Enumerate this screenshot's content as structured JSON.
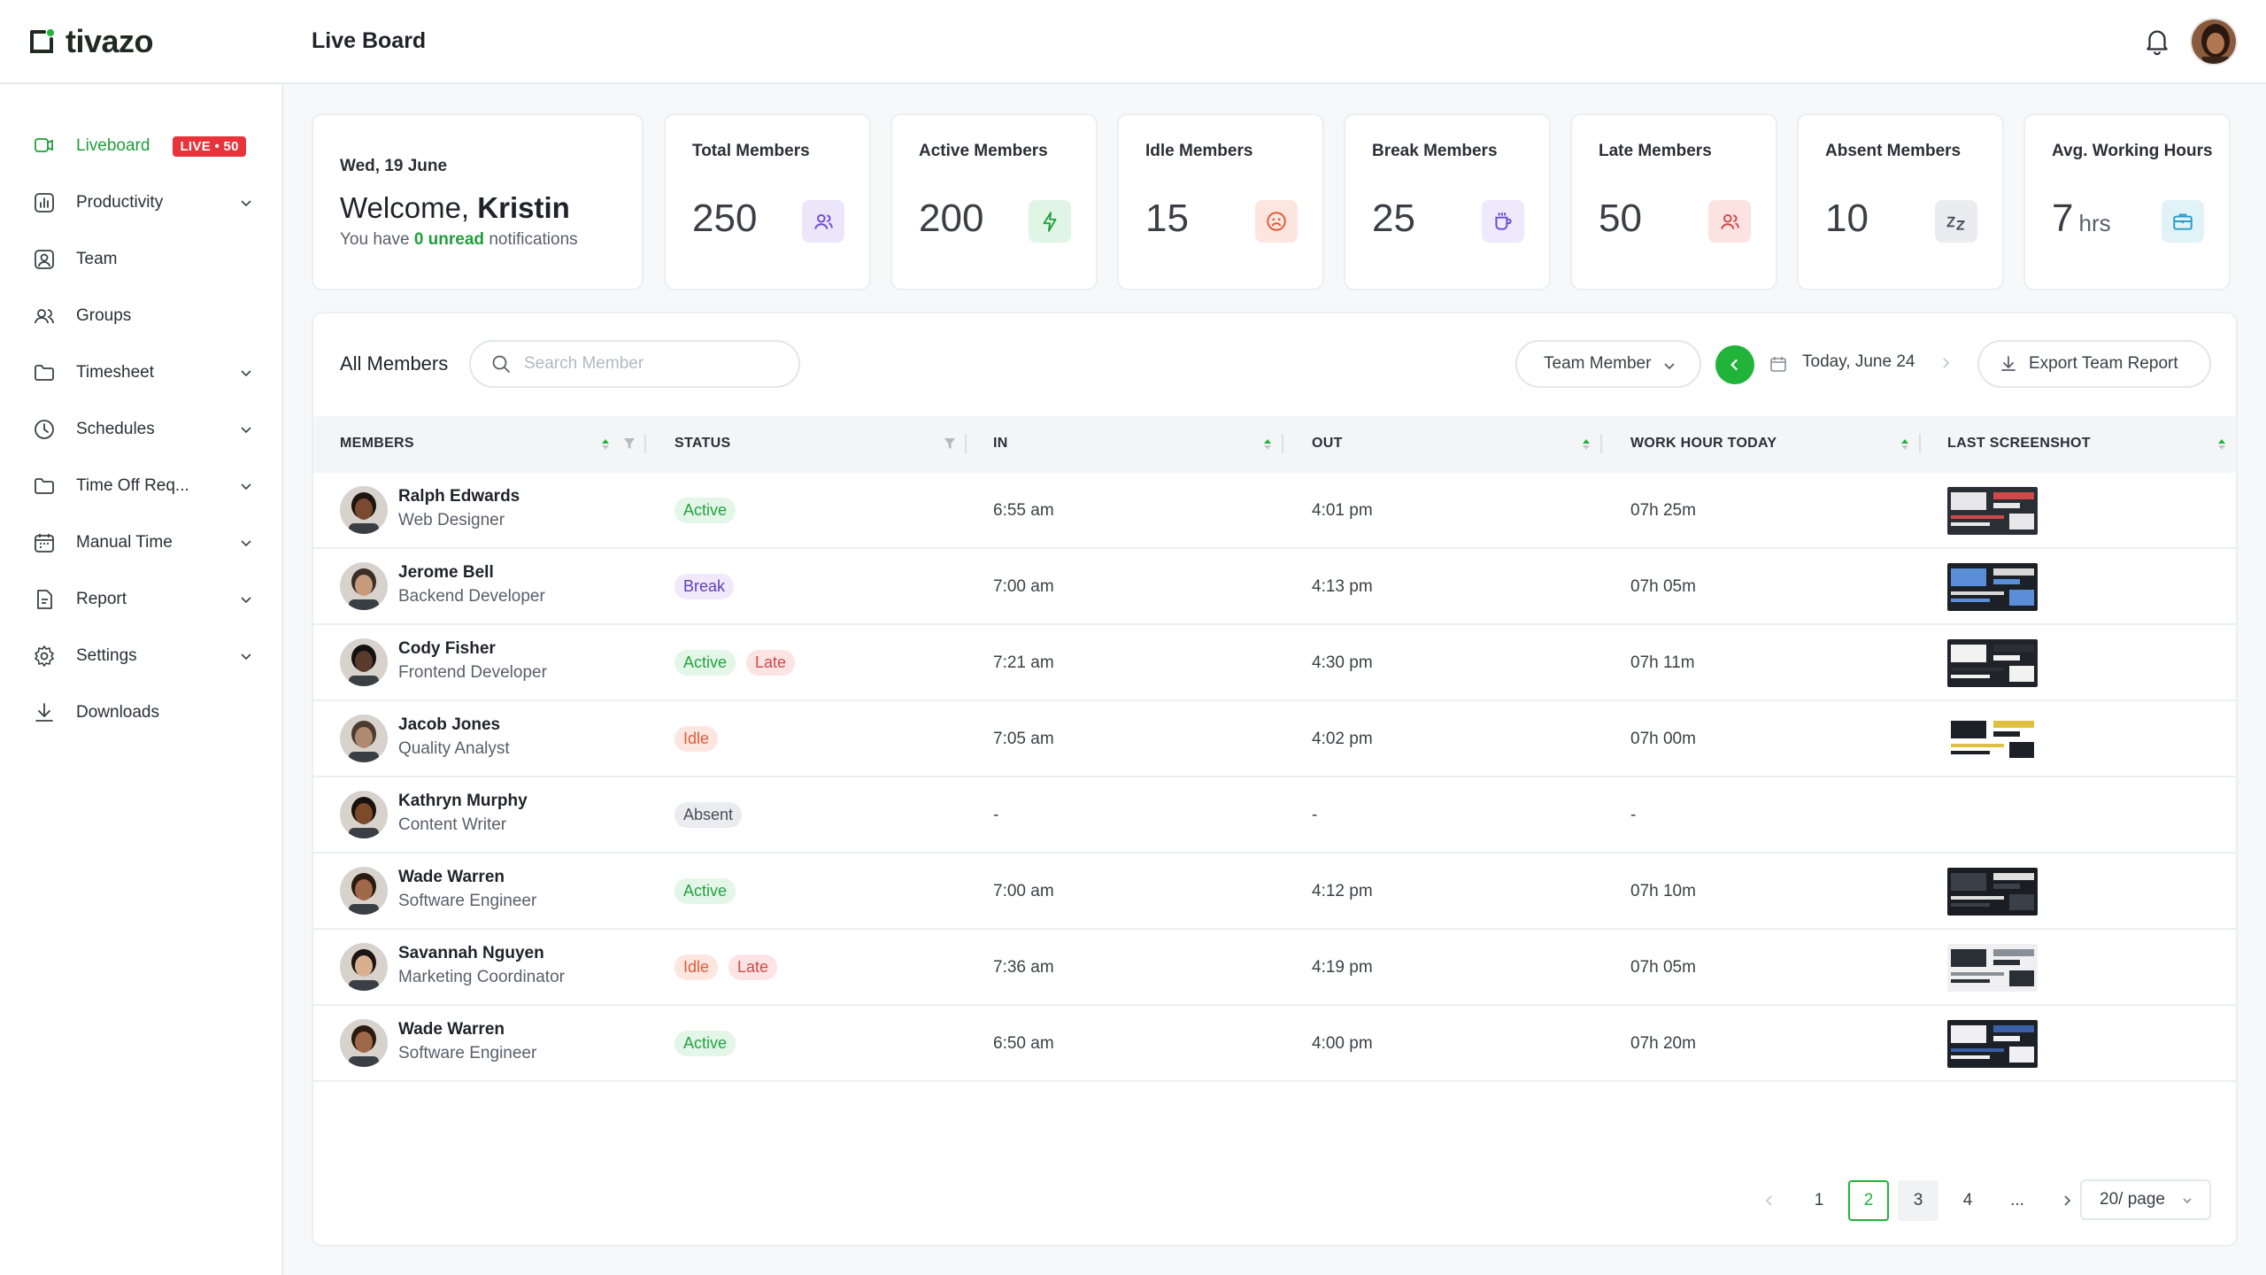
{
  "app": {
    "name": "tivazo",
    "page_title": "Live Board"
  },
  "sidebar": {
    "items": [
      {
        "label": "Liveboard",
        "icon": "liveboard-icon",
        "active": true,
        "badge": "LIVE • 50"
      },
      {
        "label": "Productivity",
        "icon": "chart-icon",
        "expandable": true
      },
      {
        "label": "Team",
        "icon": "user-icon"
      },
      {
        "label": "Groups",
        "icon": "users-icon"
      },
      {
        "label": "Timesheet",
        "icon": "folder-icon",
        "expandable": true
      },
      {
        "label": "Schedules",
        "icon": "clock-icon",
        "expandable": true
      },
      {
        "label": "Time Off Req...",
        "icon": "folder-icon",
        "expandable": true
      },
      {
        "label": "Manual Time",
        "icon": "calendar-icon",
        "expandable": true
      },
      {
        "label": "Report",
        "icon": "report-icon",
        "expandable": true
      },
      {
        "label": "Settings",
        "icon": "gear-icon",
        "expandable": true
      },
      {
        "label": "Downloads",
        "icon": "download-icon"
      }
    ]
  },
  "welcome": {
    "date": "Wed, 19 June",
    "greeting": "Welcome,",
    "name": "Kristin",
    "notif_prefix": "You have",
    "notif_count": "0 unread",
    "notif_suffix": "notifications"
  },
  "stats": [
    {
      "label": "Total Members",
      "value": "250",
      "icon": "users-icon",
      "color": "#ece6fb",
      "fg": "#6b4bd1"
    },
    {
      "label": "Active Members",
      "value": "200",
      "icon": "bolt-icon",
      "color": "#e1f5e6",
      "fg": "#23a33f"
    },
    {
      "label": "Idle Members",
      "value": "15",
      "icon": "sad-face-icon",
      "color": "#fde6df",
      "fg": "#e05a3a"
    },
    {
      "label": "Break Members",
      "value": "25",
      "icon": "coffee-icon",
      "color": "#eee9fb",
      "fg": "#6b4bd1"
    },
    {
      "label": "Late Members",
      "value": "50",
      "icon": "user-late-icon",
      "color": "#fde2e2",
      "fg": "#d04848"
    },
    {
      "label": "Absent Members",
      "value": "10",
      "icon": "sleep-icon",
      "color": "#ebecef",
      "fg": "#4a4f57"
    },
    {
      "label": "Avg. Working Hours",
      "value": "7",
      "unit": "hrs",
      "icon": "briefcase-icon",
      "color": "#e1f3f9",
      "fg": "#2b9bc2"
    }
  ],
  "toolbar": {
    "title": "All Members",
    "search_placeholder": "Search Member",
    "filter_label": "Team Member",
    "date_label": "Today, June 24",
    "export_label": "Export Team Report"
  },
  "columns": [
    "MEMBERS",
    "STATUS",
    "IN",
    "OUT",
    "WORK HOUR TODAY",
    "LAST SCREENSHOT"
  ],
  "rows": [
    {
      "name": "Ralph Edwards",
      "role": "Web Designer",
      "status": [
        "Active"
      ],
      "in": "6:55 am",
      "out": "4:01 pm",
      "hours": "07h 25m",
      "shot": 1,
      "skin": "#7a4a30",
      "hair": "#1d1410"
    },
    {
      "name": "Jerome Bell",
      "role": "Backend Developer",
      "status": [
        "Break"
      ],
      "in": "7:00 am",
      "out": "4:13 pm",
      "hours": "07h 05m",
      "shot": 2,
      "skin": "#c79a7c",
      "hair": "#3a2e28"
    },
    {
      "name": "Cody Fisher",
      "role": "Frontend Developer",
      "status": [
        "Active",
        "Late"
      ],
      "in": "7:21 am",
      "out": "4:30 pm",
      "hours": "07h 11m",
      "shot": 3,
      "skin": "#5a3a2a",
      "hair": "#111"
    },
    {
      "name": "Jacob Jones",
      "role": "Quality Analyst",
      "status": [
        "Idle"
      ],
      "in": "7:05 am",
      "out": "4:02 pm",
      "hours": "07h 00m",
      "shot": 4,
      "skin": "#b08a70",
      "hair": "#4a3a30"
    },
    {
      "name": "Kathryn Murphy",
      "role": "Content Writer",
      "status": [
        "Absent"
      ],
      "in": "-",
      "out": "-",
      "hours": "-",
      "shot": 0,
      "skin": "#7a4a2a",
      "hair": "#1a110c"
    },
    {
      "name": "Wade Warren",
      "role": "Software Engineer",
      "status": [
        "Active"
      ],
      "in": "7:00 am",
      "out": "4:12 pm",
      "hours": "07h 10m",
      "shot": 5,
      "skin": "#a0684a",
      "hair": "#2a1a12"
    },
    {
      "name": "Savannah Nguyen",
      "role": "Marketing Coordinator",
      "status": [
        "Idle",
        "Late"
      ],
      "in": "7:36 am",
      "out": "4:19 pm",
      "hours": "07h 05m",
      "shot": 6,
      "skin": "#d8b090",
      "hair": "#1c1410"
    },
    {
      "name": "Wade Warren",
      "role": "Software Engineer",
      "status": [
        "Active"
      ],
      "in": "6:50 am",
      "out": "4:00 pm",
      "hours": "07h 20m",
      "shot": 7,
      "skin": "#a0684a",
      "hair": "#2a1a12"
    }
  ],
  "pagination": {
    "pages": [
      "1",
      "2",
      "3",
      "4",
      "..."
    ],
    "current": "2",
    "per_page": "20/ page"
  }
}
